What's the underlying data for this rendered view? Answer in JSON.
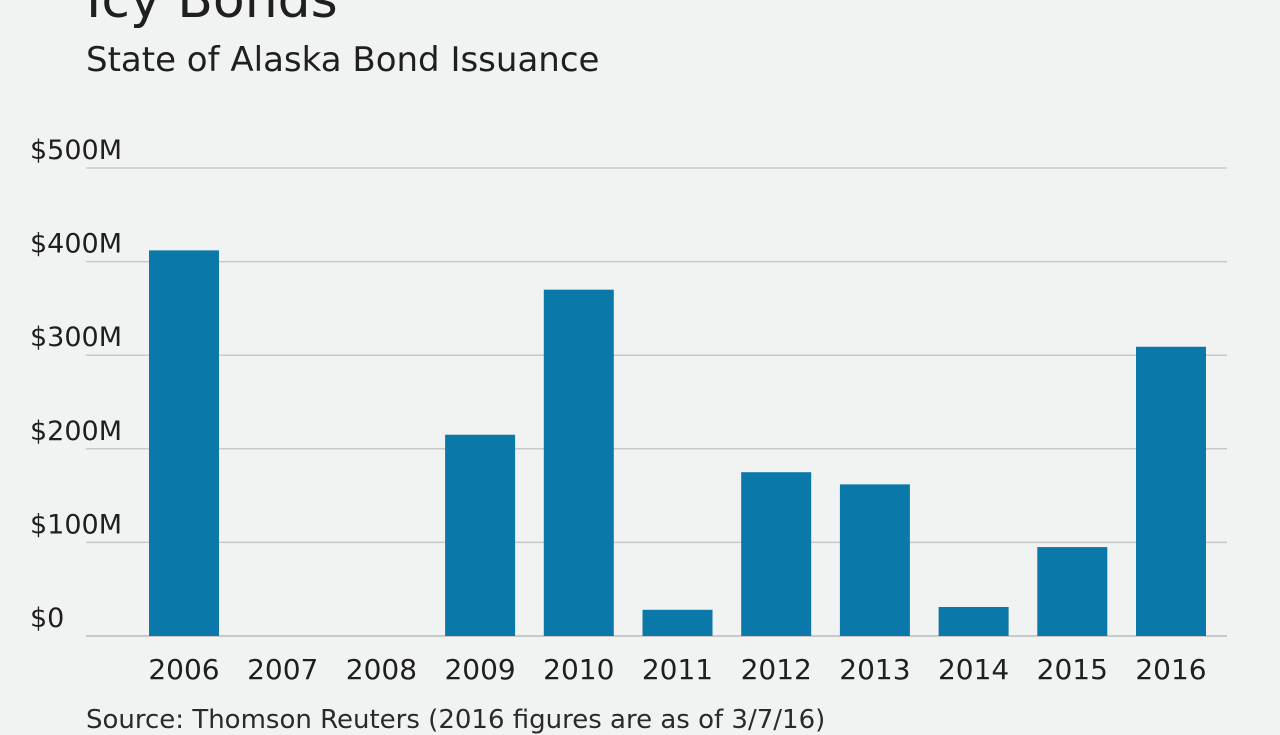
{
  "title": "Icy Bonds",
  "subtitle": "State of Alaska Bond Issuance",
  "source": "Source: Thomson Reuters (2016 figures are as of 3/7/16)",
  "colors": {
    "bar": "#0a78a8",
    "grid": "#c9c9c9",
    "background": "#f1f2f2"
  },
  "chart_data": {
    "type": "bar",
    "categories": [
      "2006",
      "2007",
      "2008",
      "2009",
      "2010",
      "2011",
      "2012",
      "2013",
      "2014",
      "2015",
      "2016"
    ],
    "values": [
      412,
      0,
      0,
      215,
      370,
      28,
      175,
      162,
      31,
      95,
      309
    ],
    "ylim": [
      0,
      500
    ],
    "yticks": [
      0,
      100,
      200,
      300,
      400,
      500
    ],
    "ytick_labels": [
      "$0",
      "$100M",
      "$200M",
      "$300M",
      "$400M",
      "$500M"
    ],
    "grid": true,
    "legend": "none"
  }
}
